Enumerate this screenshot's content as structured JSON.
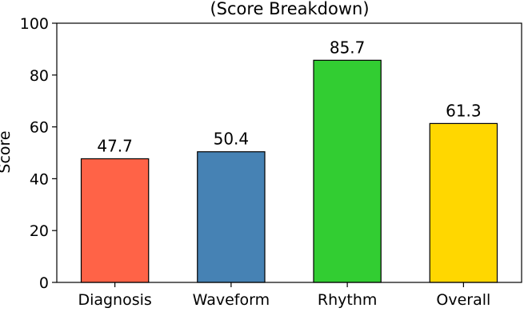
{
  "chart_data": {
    "type": "bar",
    "title": "(Score Breakdown)",
    "xlabel": "",
    "ylabel": "Score",
    "categories": [
      "Diagnosis",
      "Waveform",
      "Rhythm",
      "Overall"
    ],
    "values": [
      47.7,
      50.4,
      85.7,
      61.3
    ],
    "value_labels": [
      "47.7",
      "50.4",
      "85.7",
      "61.3"
    ],
    "colors": [
      "#ff6347",
      "#4682b4",
      "#32cd32",
      "#ffd700"
    ],
    "ylim": [
      0,
      100
    ],
    "yticks": [
      0,
      20,
      40,
      60,
      80,
      100
    ],
    "grid": false,
    "legend": "none"
  }
}
